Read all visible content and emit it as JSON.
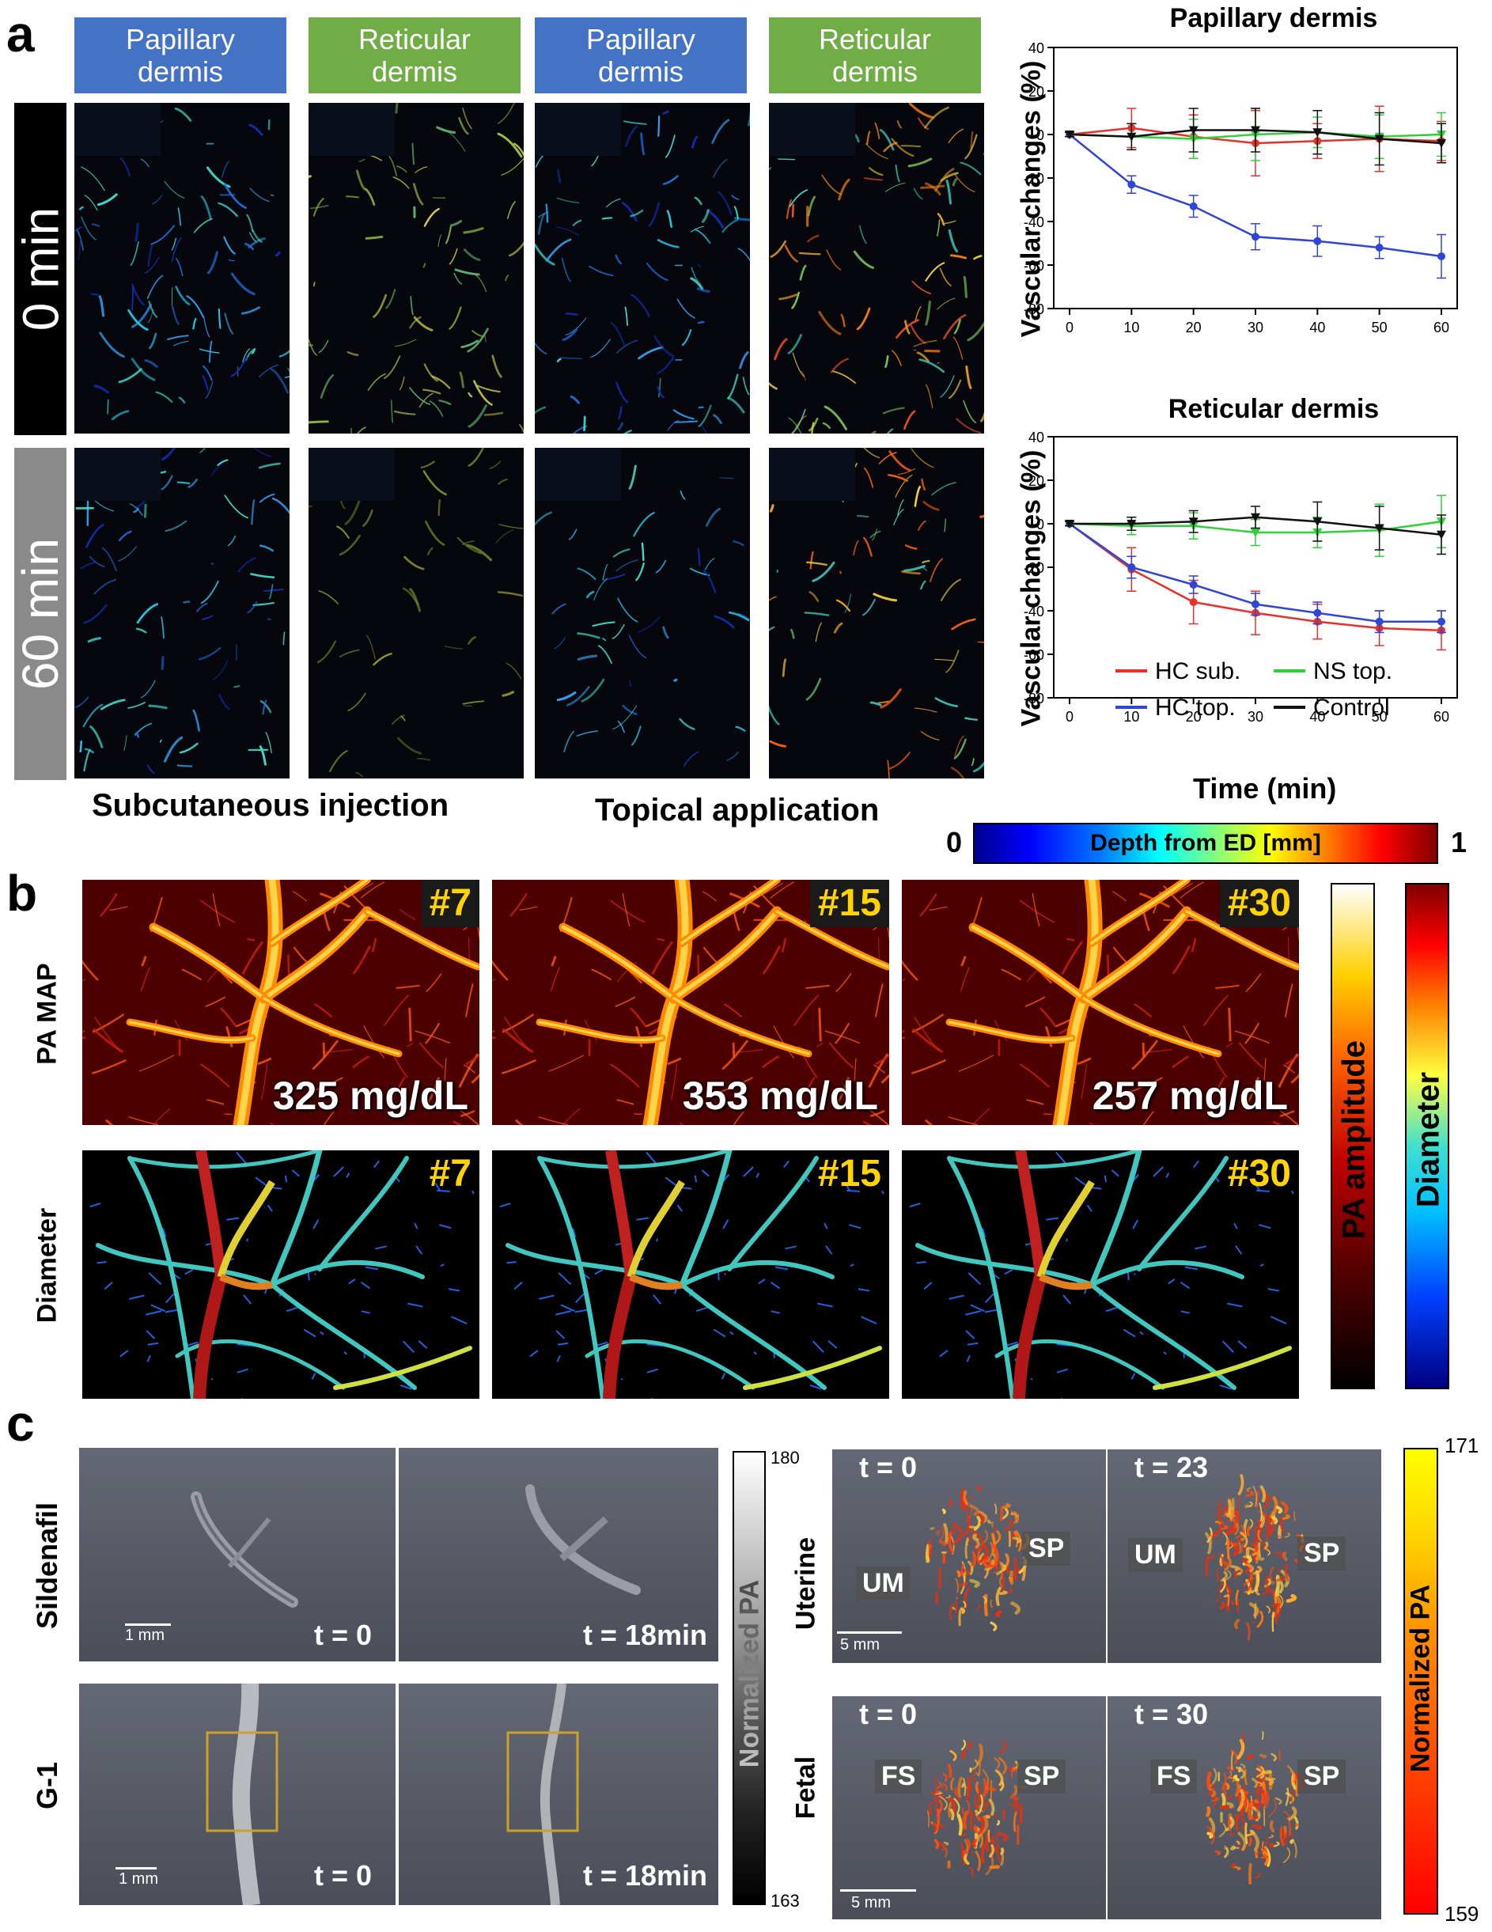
{
  "panel_a": {
    "letter": "a",
    "headers": [
      "Papillary\ndermis",
      "Reticular\ndermis",
      "Papillary\ndermis",
      "Reticular\ndermis"
    ],
    "time_labels": [
      "0 min",
      "60 min"
    ],
    "captions": [
      "Subcutaneous injection",
      "Topical application"
    ],
    "colorbar": {
      "min": "0",
      "max": "1",
      "label": "Depth from ED [mm]"
    }
  },
  "chart_data": [
    {
      "type": "line",
      "title": "Papillary dermis",
      "xlabel": "",
      "ylabel": "Vascular changes (%)",
      "x": [
        0,
        10,
        20,
        30,
        40,
        50,
        60
      ],
      "ylim": [
        -80,
        40
      ],
      "yticks": [
        -80,
        -60,
        -40,
        -20,
        0,
        20,
        40
      ],
      "series": [
        {
          "name": "HC sub.",
          "color": "#e8302a",
          "values": [
            0,
            3,
            -1,
            -4,
            -3,
            -2,
            -3
          ],
          "err": [
            1,
            9,
            10,
            15,
            8,
            15,
            9
          ]
        },
        {
          "name": "HC top.",
          "color": "#2f45d6",
          "values": [
            0,
            -23,
            -33,
            -47,
            -49,
            -52,
            -56
          ],
          "err": [
            1,
            4,
            5,
            6,
            7,
            5,
            10
          ]
        },
        {
          "name": "NS top.",
          "color": "#2fd13a",
          "values": [
            0,
            -1,
            -2,
            0,
            1,
            -1,
            0
          ],
          "err": [
            1,
            6,
            9,
            12,
            7,
            10,
            10
          ]
        },
        {
          "name": "Control",
          "color": "#111111",
          "values": [
            0,
            -1,
            2,
            2,
            1,
            -2,
            -4
          ],
          "err": [
            1,
            6,
            10,
            10,
            10,
            12,
            9
          ]
        }
      ]
    },
    {
      "type": "line",
      "title": "Reticular dermis",
      "xlabel": "Time (min)",
      "ylabel": "Vascular changes (%)",
      "x": [
        0,
        10,
        20,
        30,
        40,
        50,
        60
      ],
      "ylim": [
        -80,
        40
      ],
      "yticks": [
        -80,
        -60,
        -40,
        -20,
        0,
        20,
        40
      ],
      "legend": "bottom",
      "series": [
        {
          "name": "HC sub.",
          "color": "#e8302a",
          "values": [
            0,
            -21,
            -36,
            -41,
            -45,
            -48,
            -49
          ],
          "err": [
            1,
            10,
            10,
            10,
            8,
            8,
            9
          ]
        },
        {
          "name": "HC top.",
          "color": "#2f45d6",
          "values": [
            0,
            -20,
            -28,
            -37,
            -41,
            -45,
            -45
          ],
          "err": [
            1,
            5,
            4,
            5,
            5,
            5,
            5
          ]
        },
        {
          "name": "NS top.",
          "color": "#2fd13a",
          "values": [
            0,
            -1,
            -1,
            -4,
            -4,
            -3,
            1
          ],
          "err": [
            1,
            4,
            6,
            6,
            7,
            12,
            12
          ]
        },
        {
          "name": "Control",
          "color": "#111111",
          "values": [
            0,
            0,
            1,
            3,
            1,
            -2,
            -5
          ],
          "err": [
            1,
            3,
            5,
            5,
            9,
            10,
            9
          ]
        }
      ]
    }
  ],
  "panel_b": {
    "letter": "b",
    "row_labels": [
      "PA MAP",
      "Diameter"
    ],
    "frame_tags": [
      "#7",
      "#15",
      "#30"
    ],
    "glucose": [
      "325 mg/dL",
      "353 mg/dL",
      "257 mg/dL"
    ],
    "colorbars": [
      "PA amplitude",
      "Diameter"
    ]
  },
  "panel_c": {
    "letter": "c",
    "left_rows": [
      "Sildenafil",
      "G-1"
    ],
    "left_times": [
      "t = 0",
      "t = 18min",
      "t = 0",
      "t = 18min"
    ],
    "left_scale": "1 mm",
    "left_colorbar": {
      "label": "Normalized PA",
      "max": "180",
      "min": "163"
    },
    "right_rows": [
      "Uterine",
      "Fetal"
    ],
    "right_times": [
      "t = 0",
      "t = 23",
      "t = 0",
      "t = 30"
    ],
    "right_scale": "5 mm",
    "regions": {
      "um": "UM",
      "sp": "SP",
      "fs": "FS"
    },
    "right_colorbar": {
      "label": "Normalized PA",
      "max": "171",
      "min": "159"
    }
  }
}
